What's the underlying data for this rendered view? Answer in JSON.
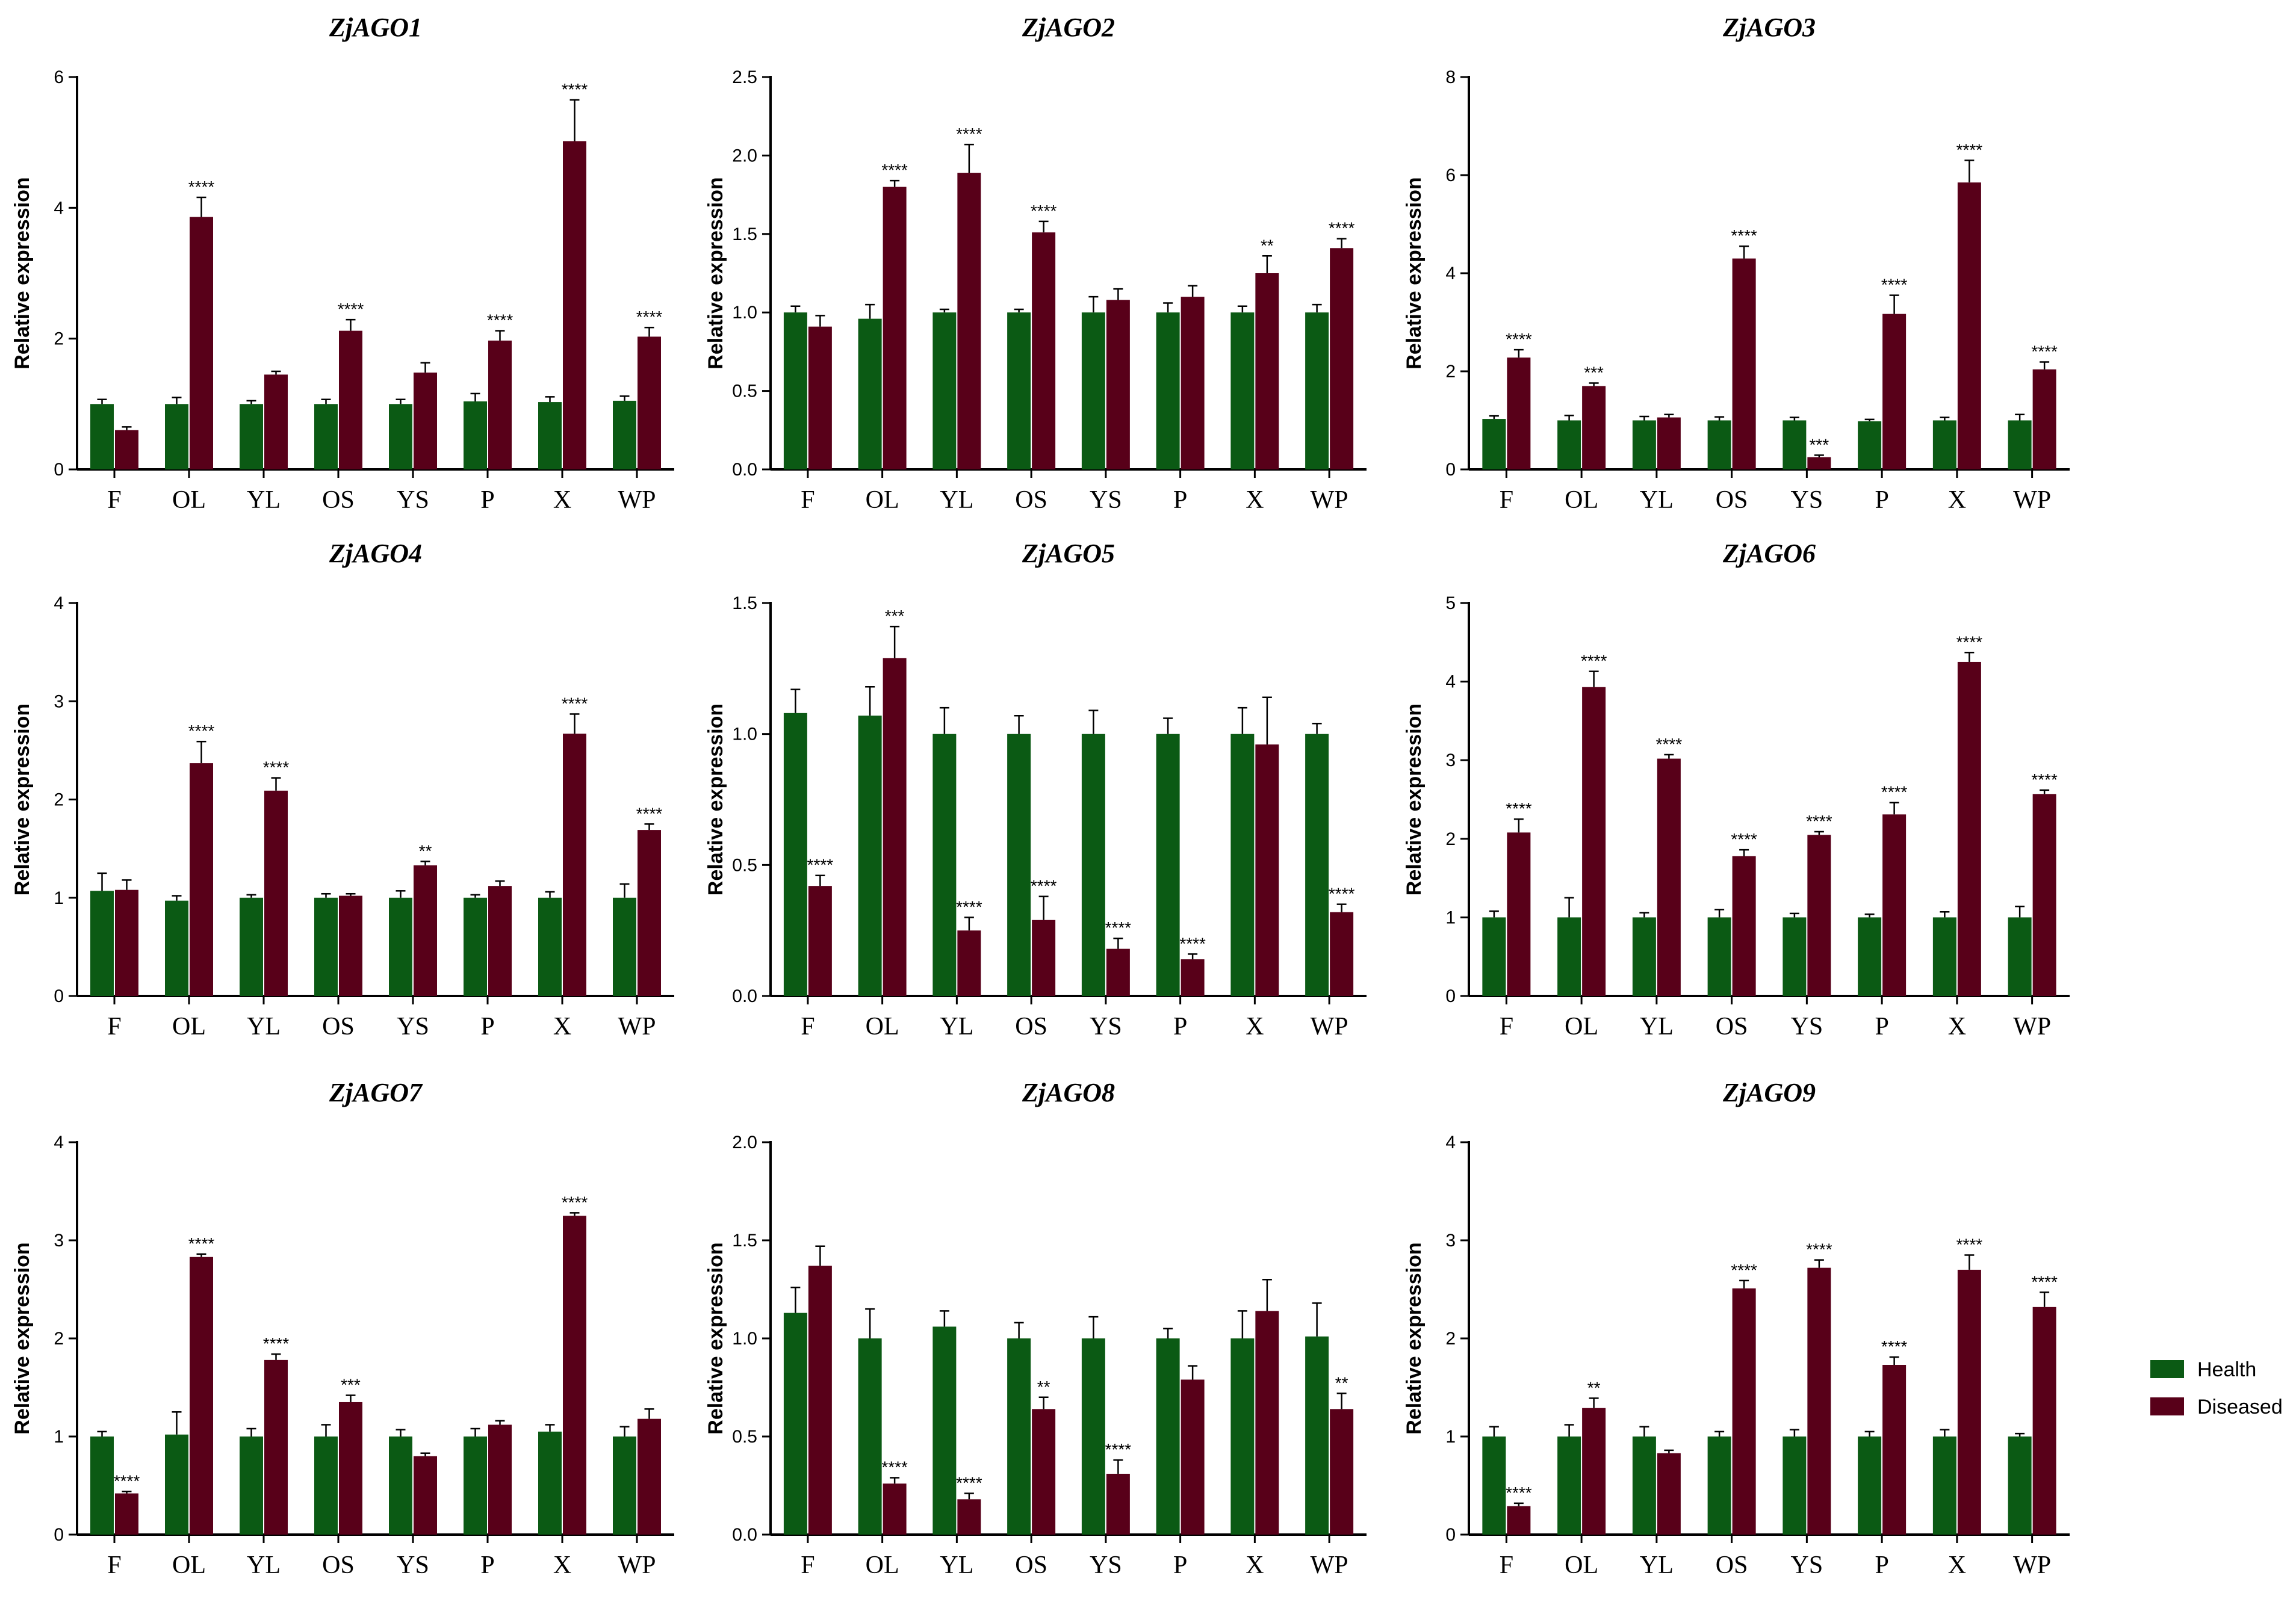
{
  "colors": {
    "health": "#0b5a14",
    "diseased": "#580019",
    "axis": "#000000"
  },
  "legend": {
    "placement": "right",
    "items": [
      {
        "label": "Health",
        "color": "#0b5a14"
      },
      {
        "label": "Diseased",
        "color": "#580019"
      }
    ]
  },
  "chart_data": [
    {
      "type": "bar",
      "title": "ZjAGO1",
      "ylabel": "Relative expression",
      "categories": [
        "F",
        "OL",
        "YL",
        "OS",
        "YS",
        "P",
        "X",
        "WP"
      ],
      "ylim": [
        0,
        6
      ],
      "yticks": [
        "0",
        "2",
        "4",
        "6"
      ],
      "series": [
        {
          "name": "Health",
          "values": [
            1.0,
            1.0,
            1.0,
            1.0,
            1.0,
            1.04,
            1.03,
            1.05
          ],
          "errors": [
            0.07,
            0.1,
            0.05,
            0.07,
            0.07,
            0.12,
            0.08,
            0.07
          ]
        },
        {
          "name": "Diseased",
          "values": [
            0.6,
            3.86,
            1.45,
            2.12,
            1.48,
            1.97,
            5.02,
            2.03
          ],
          "errors": [
            0.05,
            0.3,
            0.05,
            0.17,
            0.15,
            0.15,
            0.63,
            0.14
          ],
          "sig": [
            "",
            "****",
            "",
            "****",
            "",
            "****",
            "****",
            "****"
          ]
        }
      ]
    },
    {
      "type": "bar",
      "title": "ZjAGO2",
      "ylabel": "Relative expression",
      "categories": [
        "F",
        "OL",
        "YL",
        "OS",
        "YS",
        "P",
        "X",
        "WP"
      ],
      "ylim": [
        0,
        2.5
      ],
      "yticks": [
        "0.0",
        "0.5",
        "1.0",
        "1.5",
        "2.0",
        "2.5"
      ],
      "series": [
        {
          "name": "Health",
          "values": [
            1.0,
            0.96,
            1.0,
            1.0,
            1.0,
            1.0,
            1.0,
            1.0
          ],
          "errors": [
            0.04,
            0.09,
            0.02,
            0.02,
            0.1,
            0.06,
            0.04,
            0.05
          ]
        },
        {
          "name": "Diseased",
          "values": [
            0.91,
            1.8,
            1.89,
            1.51,
            1.08,
            1.1,
            1.25,
            1.41
          ],
          "errors": [
            0.07,
            0.04,
            0.18,
            0.07,
            0.07,
            0.07,
            0.11,
            0.06
          ],
          "sig": [
            "",
            "****",
            "****",
            "****",
            "",
            "",
            "**",
            "****"
          ]
        }
      ]
    },
    {
      "type": "bar",
      "title": "ZjAGO3",
      "ylabel": "Relative expression",
      "categories": [
        "F",
        "OL",
        "YL",
        "OS",
        "YS",
        "P",
        "X",
        "WP"
      ],
      "ylim": [
        0,
        8
      ],
      "yticks": [
        "0",
        "2",
        "4",
        "6",
        "8"
      ],
      "series": [
        {
          "name": "Health",
          "values": [
            1.03,
            1.0,
            1.0,
            1.0,
            1.0,
            0.98,
            1.0,
            1.0
          ],
          "errors": [
            0.06,
            0.1,
            0.08,
            0.07,
            0.06,
            0.04,
            0.06,
            0.12
          ]
        },
        {
          "name": "Diseased",
          "values": [
            2.28,
            1.7,
            1.06,
            4.3,
            0.25,
            3.17,
            5.85,
            2.04
          ],
          "errors": [
            0.16,
            0.06,
            0.06,
            0.25,
            0.04,
            0.38,
            0.45,
            0.15
          ],
          "sig": [
            "****",
            "***",
            "",
            "****",
            "***",
            "****",
            "****",
            "****"
          ]
        }
      ]
    },
    {
      "type": "bar",
      "title": "ZjAGO4",
      "ylabel": "Relative expression",
      "categories": [
        "F",
        "OL",
        "YL",
        "OS",
        "YS",
        "P",
        "X",
        "WP"
      ],
      "ylim": [
        0,
        4
      ],
      "yticks": [
        "0",
        "1",
        "2",
        "3",
        "4"
      ],
      "series": [
        {
          "name": "Health",
          "values": [
            1.07,
            0.97,
            1.0,
            1.0,
            1.0,
            1.0,
            1.0,
            1.0
          ],
          "errors": [
            0.18,
            0.05,
            0.03,
            0.04,
            0.07,
            0.03,
            0.06,
            0.14
          ]
        },
        {
          "name": "Diseased",
          "values": [
            1.08,
            2.37,
            2.09,
            1.02,
            1.33,
            1.12,
            2.67,
            1.69
          ],
          "errors": [
            0.1,
            0.22,
            0.13,
            0.02,
            0.04,
            0.05,
            0.2,
            0.06
          ],
          "sig": [
            "",
            "****",
            "****",
            "",
            "**",
            "",
            "****",
            "****"
          ]
        }
      ]
    },
    {
      "type": "bar",
      "title": "ZjAGO5",
      "ylabel": "Relative expression",
      "categories": [
        "F",
        "OL",
        "YL",
        "OS",
        "YS",
        "P",
        "X",
        "WP"
      ],
      "ylim": [
        0,
        1.5
      ],
      "yticks": [
        "0.0",
        "0.5",
        "1.0",
        "1.5"
      ],
      "series": [
        {
          "name": "Health",
          "values": [
            1.08,
            1.07,
            1.0,
            1.0,
            1.0,
            1.0,
            1.0,
            1.0
          ],
          "errors": [
            0.09,
            0.11,
            0.1,
            0.07,
            0.09,
            0.06,
            0.1,
            0.04
          ]
        },
        {
          "name": "Diseased",
          "values": [
            0.42,
            1.29,
            0.25,
            0.29,
            0.18,
            0.14,
            0.96,
            0.32
          ],
          "errors": [
            0.04,
            0.12,
            0.05,
            0.09,
            0.04,
            0.02,
            0.18,
            0.03
          ],
          "sig": [
            "****",
            "***",
            "****",
            "****",
            "****",
            "****",
            "",
            "****"
          ]
        }
      ]
    },
    {
      "type": "bar",
      "title": "ZjAGO6",
      "ylabel": "Relative expression",
      "categories": [
        "F",
        "OL",
        "YL",
        "OS",
        "YS",
        "P",
        "X",
        "WP"
      ],
      "ylim": [
        0,
        5
      ],
      "yticks": [
        "0",
        "1",
        "2",
        "3",
        "4",
        "5"
      ],
      "series": [
        {
          "name": "Health",
          "values": [
            1.0,
            1.0,
            1.0,
            1.0,
            1.0,
            1.0,
            1.0,
            1.0
          ],
          "errors": [
            0.08,
            0.25,
            0.06,
            0.1,
            0.05,
            0.04,
            0.07,
            0.14
          ]
        },
        {
          "name": "Diseased",
          "values": [
            2.08,
            3.93,
            3.02,
            1.78,
            2.05,
            2.31,
            4.25,
            2.57
          ],
          "errors": [
            0.17,
            0.2,
            0.05,
            0.08,
            0.04,
            0.15,
            0.12,
            0.05
          ],
          "sig": [
            "****",
            "****",
            "****",
            "****",
            "****",
            "****",
            "****",
            "****"
          ]
        }
      ]
    },
    {
      "type": "bar",
      "title": "ZjAGO7",
      "ylabel": "Relative expression",
      "categories": [
        "F",
        "OL",
        "YL",
        "OS",
        "YS",
        "P",
        "X",
        "WP"
      ],
      "ylim": [
        0,
        4
      ],
      "yticks": [
        "0",
        "1",
        "2",
        "3",
        "4"
      ],
      "series": [
        {
          "name": "Health",
          "values": [
            1.0,
            1.02,
            1.0,
            1.0,
            1.0,
            1.0,
            1.05,
            1.0
          ],
          "errors": [
            0.05,
            0.23,
            0.08,
            0.12,
            0.07,
            0.08,
            0.07,
            0.1
          ]
        },
        {
          "name": "Diseased",
          "values": [
            0.42,
            2.83,
            1.78,
            1.35,
            0.8,
            1.12,
            3.25,
            1.18
          ],
          "errors": [
            0.02,
            0.03,
            0.06,
            0.07,
            0.03,
            0.04,
            0.03,
            0.1
          ],
          "sig": [
            "****",
            "****",
            "****",
            "***",
            "",
            "",
            "****",
            ""
          ]
        }
      ]
    },
    {
      "type": "bar",
      "title": "ZjAGO8",
      "ylabel": "Relative expression",
      "categories": [
        "F",
        "OL",
        "YL",
        "OS",
        "YS",
        "P",
        "X",
        "WP"
      ],
      "ylim": [
        0,
        2.0
      ],
      "yticks": [
        "0.0",
        "0.5",
        "1.0",
        "1.5",
        "2.0"
      ],
      "series": [
        {
          "name": "Health",
          "values": [
            1.13,
            1.0,
            1.06,
            1.0,
            1.0,
            1.0,
            1.0,
            1.01
          ],
          "errors": [
            0.13,
            0.15,
            0.08,
            0.08,
            0.11,
            0.05,
            0.14,
            0.17
          ]
        },
        {
          "name": "Diseased",
          "values": [
            1.37,
            0.26,
            0.18,
            0.64,
            0.31,
            0.79,
            1.14,
            0.64
          ],
          "errors": [
            0.1,
            0.03,
            0.03,
            0.06,
            0.07,
            0.07,
            0.16,
            0.08
          ],
          "sig": [
            "",
            "****",
            "****",
            "**",
            "****",
            "",
            "",
            "**"
          ]
        }
      ]
    },
    {
      "type": "bar",
      "title": "ZjAGO9",
      "ylabel": "Relative expression",
      "categories": [
        "F",
        "OL",
        "YL",
        "OS",
        "YS",
        "P",
        "X",
        "WP"
      ],
      "ylim": [
        0,
        4
      ],
      "yticks": [
        "0",
        "1",
        "2",
        "3",
        "4"
      ],
      "series": [
        {
          "name": "Health",
          "values": [
            1.0,
            1.0,
            1.0,
            1.0,
            1.0,
            1.0,
            1.0,
            1.0
          ],
          "errors": [
            0.1,
            0.12,
            0.1,
            0.05,
            0.07,
            0.05,
            0.07,
            0.03
          ]
        },
        {
          "name": "Diseased",
          "values": [
            0.29,
            1.29,
            0.83,
            2.51,
            2.72,
            1.73,
            2.7,
            2.32
          ],
          "errors": [
            0.03,
            0.1,
            0.03,
            0.08,
            0.08,
            0.08,
            0.15,
            0.15
          ],
          "sig": [
            "****",
            "**",
            "",
            "****",
            "****",
            "****",
            "****",
            "****"
          ]
        }
      ]
    }
  ]
}
